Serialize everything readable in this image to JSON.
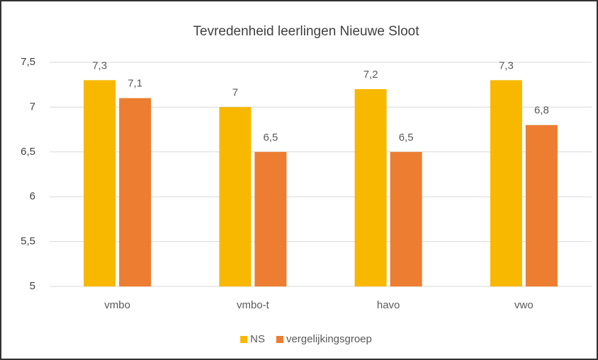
{
  "chart_data": {
    "type": "bar",
    "title": "Tevredenheid leerlingen Nieuwe Sloot",
    "categories": [
      "vmbo",
      "vmbo-t",
      "havo",
      "vwo"
    ],
    "series": [
      {
        "name": "NS",
        "color": "#f8b800",
        "values": [
          7.3,
          7,
          7.2,
          7.3
        ],
        "value_labels": [
          "7,3",
          "7",
          "7,2",
          "7,3"
        ]
      },
      {
        "name": "vergelijkingsgroep",
        "color": "#ed7d31",
        "values": [
          7.1,
          6.5,
          6.5,
          6.8
        ],
        "value_labels": [
          "7,1",
          "6,5",
          "6,5",
          "6,8"
        ]
      }
    ],
    "ylim": [
      5,
      7.5
    ],
    "yticks": [
      5,
      {
        "value": 5.5,
        "label": "5,5"
      },
      6,
      {
        "value": 6.5,
        "label": "6,5"
      },
      7,
      {
        "value": 7.5,
        "label": "7,5"
      }
    ],
    "grid": true,
    "legend": "bottom"
  }
}
